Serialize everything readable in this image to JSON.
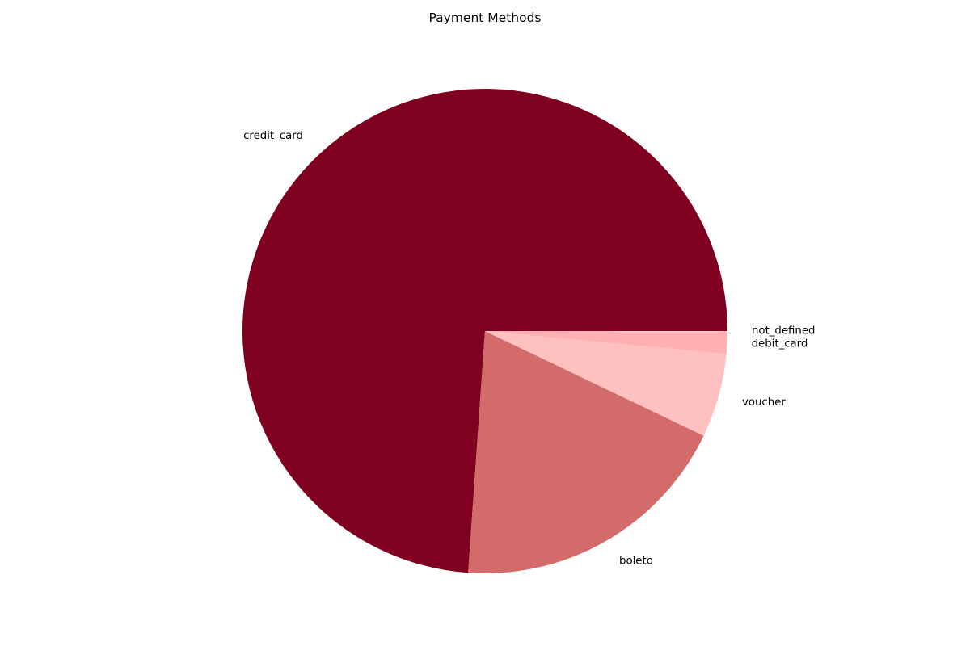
{
  "chart_data": {
    "type": "pie",
    "title": "Payment Methods",
    "categories": [
      "credit_card",
      "boleto",
      "voucher",
      "debit_card",
      "not_defined"
    ],
    "values": [
      73.9,
      19.0,
      5.6,
      1.5,
      0.01
    ],
    "colors": [
      "#800020",
      "#d46b6b",
      "#ffc0c0",
      "#ffb0b0",
      "#ffb8b8"
    ],
    "start_angle_deg": 0,
    "direction": "counterclockwise",
    "legend": "none"
  }
}
